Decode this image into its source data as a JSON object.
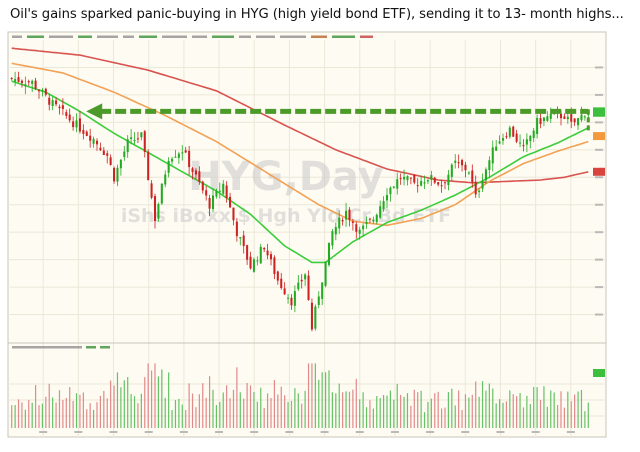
{
  "caption": "Oil's gains sparked panic-buying in HYG (high yield bond ETF), sending it to 13- month highs...",
  "chart_data": {
    "type": "candlestick",
    "watermark_title": "HYG,Day",
    "watermark_subtitle": "iShs iBoxx $ Hgh Yld Cr Bd ETF",
    "price_ylim": [
      68,
      90
    ],
    "volume_ylim": [
      0,
      100
    ],
    "x_count": 170,
    "anchors": {
      "close": [
        [
          0,
          87.2
        ],
        [
          6,
          86.9
        ],
        [
          12,
          85.3
        ],
        [
          18,
          84.0
        ],
        [
          24,
          82.8
        ],
        [
          28,
          81.6
        ],
        [
          30,
          80.0
        ],
        [
          34,
          82.5
        ],
        [
          38,
          83.0
        ],
        [
          42,
          77.0
        ],
        [
          46,
          81.5
        ],
        [
          50,
          82.0
        ],
        [
          54,
          80.0
        ],
        [
          58,
          78.0
        ],
        [
          62,
          79.5
        ],
        [
          66,
          76.0
        ],
        [
          70,
          73.5
        ],
        [
          74,
          75.0
        ],
        [
          78,
          72.5
        ],
        [
          82,
          71.0
        ],
        [
          86,
          73.0
        ],
        [
          88,
          69.0
        ],
        [
          90,
          71.5
        ],
        [
          94,
          76.0
        ],
        [
          98,
          77.5
        ],
        [
          102,
          76.0
        ],
        [
          106,
          77.0
        ],
        [
          110,
          79.0
        ],
        [
          114,
          80.0
        ],
        [
          118,
          79.5
        ],
        [
          122,
          80.0
        ],
        [
          126,
          79.5
        ],
        [
          130,
          81.0
        ],
        [
          134,
          80.5
        ],
        [
          136,
          78.5
        ],
        [
          138,
          80.0
        ],
        [
          142,
          82.5
        ],
        [
          146,
          83.5
        ],
        [
          150,
          82.0
        ],
        [
          154,
          84.0
        ],
        [
          158,
          84.5
        ],
        [
          162,
          84.5
        ],
        [
          164,
          83.8
        ],
        [
          166,
          84.2
        ],
        [
          169,
          85.0
        ]
      ],
      "sma50": [
        [
          0,
          87.0
        ],
        [
          10,
          86.2
        ],
        [
          20,
          84.8
        ],
        [
          30,
          83.2
        ],
        [
          40,
          81.8
        ],
        [
          50,
          80.4
        ],
        [
          60,
          79.0
        ],
        [
          70,
          77.3
        ],
        [
          80,
          75.0
        ],
        [
          88,
          73.8
        ],
        [
          92,
          73.8
        ],
        [
          100,
          75.3
        ],
        [
          110,
          76.7
        ],
        [
          120,
          77.6
        ],
        [
          130,
          78.7
        ],
        [
          140,
          80.0
        ],
        [
          150,
          81.5
        ],
        [
          160,
          82.5
        ],
        [
          169,
          83.6
        ]
      ],
      "sma100": [
        [
          0,
          88.3
        ],
        [
          15,
          87.6
        ],
        [
          30,
          86.2
        ],
        [
          45,
          84.5
        ],
        [
          60,
          82.6
        ],
        [
          75,
          80.3
        ],
        [
          90,
          78.0
        ],
        [
          100,
          76.8
        ],
        [
          110,
          76.5
        ],
        [
          120,
          77.0
        ],
        [
          130,
          78.0
        ],
        [
          140,
          79.7
        ],
        [
          150,
          81.0
        ],
        [
          160,
          81.9
        ],
        [
          169,
          82.6
        ]
      ],
      "sma200": [
        [
          0,
          89.4
        ],
        [
          20,
          88.9
        ],
        [
          40,
          87.8
        ],
        [
          60,
          86.3
        ],
        [
          80,
          83.8
        ],
        [
          95,
          82.0
        ],
        [
          110,
          80.6
        ],
        [
          125,
          79.8
        ],
        [
          135,
          79.6
        ],
        [
          145,
          79.7
        ],
        [
          155,
          79.8
        ],
        [
          162,
          80.0
        ],
        [
          169,
          80.4
        ]
      ]
    },
    "resistance_level": 84.8,
    "resistance_range": [
      23,
      169
    ],
    "series_colors": {
      "up": "#22aa22",
      "down": "#cc2222",
      "sma50": "#3ccd3c",
      "sma100": "#f2a155",
      "sma200": "#d9534f",
      "resistance": "#4c9a2a"
    },
    "volume_color_up": "#66c266",
    "volume_color_down": "#e08a8a",
    "grid": true,
    "plot_background": "#fdfbf2"
  }
}
